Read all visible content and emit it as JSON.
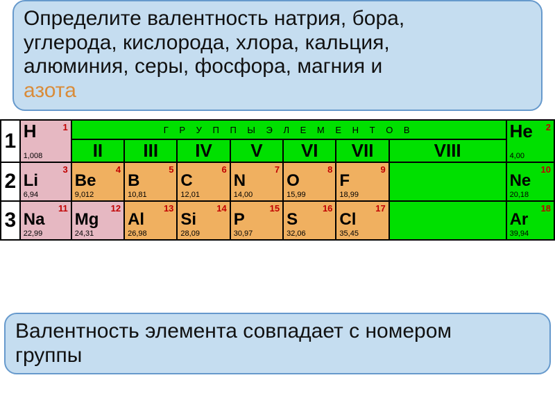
{
  "question": {
    "line1": "Определите валентность натрия, бора,",
    "line2": "углерода, кислорода, хлора, кальция,",
    "line3": "алюминия, серы, фосфора, магния и",
    "line4": "азота"
  },
  "groups_header": "Г Р У П П Ы   Э Л Е М Е Н Т О В",
  "romans": {
    "II": "II",
    "III": "III",
    "IV": "IV",
    "V": "V",
    "VI": "VI",
    "VII": "VII",
    "VIII": "VIII"
  },
  "periods": {
    "p1": "1",
    "p2": "2",
    "p3": "3"
  },
  "elements": {
    "H": {
      "num": "1",
      "sym": "H",
      "mass": "1,008"
    },
    "He": {
      "num": "2",
      "sym": "He",
      "mass": "4,00"
    },
    "Li": {
      "num": "3",
      "sym": "Li",
      "mass": "6,94"
    },
    "Be": {
      "num": "4",
      "sym": "Be",
      "mass": "9,012"
    },
    "B": {
      "num": "5",
      "sym": "B",
      "mass": "10,81"
    },
    "C": {
      "num": "6",
      "sym": "C",
      "mass": "12,01"
    },
    "N": {
      "num": "7",
      "sym": "N",
      "mass": "14,00"
    },
    "O": {
      "num": "8",
      "sym": "O",
      "mass": "15,99"
    },
    "F": {
      "num": "9",
      "sym": "F",
      "mass": "18,99"
    },
    "Ne": {
      "num": "10",
      "sym": "Ne",
      "mass": "20,18"
    },
    "Na": {
      "num": "11",
      "sym": "Na",
      "mass": "22,99"
    },
    "Mg": {
      "num": "12",
      "sym": "Mg",
      "mass": "24,31"
    },
    "Al": {
      "num": "13",
      "sym": "Al",
      "mass": "26,98"
    },
    "Si": {
      "num": "14",
      "sym": "Si",
      "mass": "28,09"
    },
    "P": {
      "num": "15",
      "sym": "P",
      "mass": "30,97"
    },
    "S": {
      "num": "16",
      "sym": "S",
      "mass": "32,06"
    },
    "Cl": {
      "num": "17",
      "sym": "Cl",
      "mass": "35,45"
    },
    "Ar": {
      "num": "18",
      "sym": "Ar",
      "mass": "39,94"
    }
  },
  "footer": {
    "line1": "Валентность элемента совпадает с номером",
    "line2": "группы"
  },
  "colors": {
    "green": "#00e000",
    "pink": "#e6b8c2",
    "salmon": "#f0b060",
    "box_bg": "#c5ddf0",
    "box_border": "#6699cc",
    "atomic_red": "#c00000"
  }
}
